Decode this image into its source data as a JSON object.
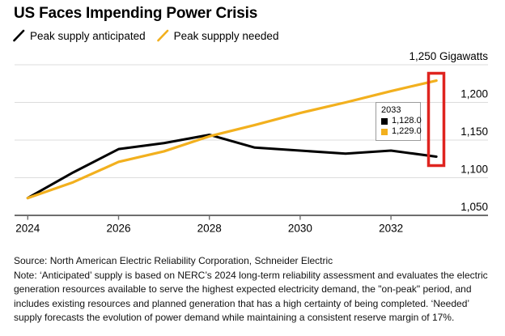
{
  "title": "US Faces Impending Power Crisis",
  "legend": [
    {
      "label": "Peak supply anticipated",
      "color": "#000000",
      "icon": "diagonal-line-swatch"
    },
    {
      "label": "Peak suppply needed",
      "color": "#F2B01E",
      "icon": "diagonal-line-swatch"
    }
  ],
  "chart_data": {
    "type": "line",
    "x": [
      2024,
      2025,
      2026,
      2027,
      2028,
      2029,
      2030,
      2031,
      2032,
      2033
    ],
    "series": [
      {
        "name": "Peak supply anticipated",
        "color": "#000000",
        "values": [
          1073,
          1107,
          1138,
          1146,
          1157,
          1140,
          1136,
          1132,
          1136,
          1128
        ]
      },
      {
        "name": "Peak suppply needed",
        "color": "#F2B01E",
        "values": [
          1073,
          1094,
          1121,
          1135,
          1155,
          1170,
          1186,
          1200,
          1215,
          1229
        ]
      }
    ],
    "xlabel": "",
    "ylabel": "Gigawatts",
    "xlim": [
      2024,
      2033
    ],
    "ylim": [
      1050,
      1250
    ],
    "xticks": {
      "values": [
        2024,
        2026,
        2028,
        2030,
        2032
      ],
      "labels": [
        "2024",
        "2026",
        "2028",
        "2030",
        "2032"
      ]
    },
    "yticks": {
      "values": [
        1050,
        1100,
        1150,
        1200,
        1250
      ],
      "labels": [
        "1,050",
        "1,100",
        "1,150",
        "1,200",
        "1,250 Gigawatts"
      ]
    },
    "grid": "horizontal",
    "legend_position": "top-left",
    "highlight": {
      "x": 2033,
      "color": "#DF241F",
      "shape": "rectangle"
    }
  },
  "tooltip": {
    "year": "2033",
    "rows": [
      {
        "series": "Peak supply anticipated",
        "swatch": "#000000",
        "value": "1,128.0"
      },
      {
        "series": "Peak suppply needed",
        "swatch": "#F2B01E",
        "value": "1,229.0"
      }
    ]
  },
  "footer": {
    "source": "Source: North American Electric Reliability Corporation, Schneider Electric",
    "note": "Note: ‘Anticipated’ supply is based on NERC’s 2024 long-term reliability assessment and evaluates the electric generation resources available to serve the highest expected electricity demand, the \"on-peak\" period, and includes existing resources and planned generation that has a high certainty of being completed. ‘Needed’ supply forecasts the evolution of power demand while maintaining a consistent reserve margin of 17%."
  },
  "colors": {
    "line_anticipated": "#000000",
    "line_needed": "#F2B01E",
    "highlight_red": "#DF241F",
    "gridline": "#DCDCDC",
    "axis": "#6E6E6E",
    "background": "#FFFFFF"
  }
}
